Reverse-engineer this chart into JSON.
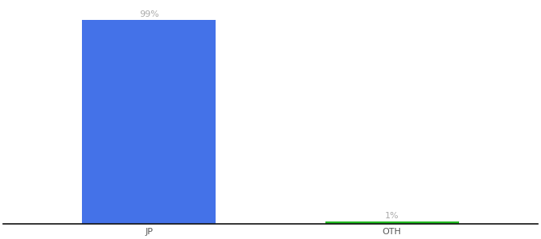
{
  "categories": [
    "JP",
    "OTH"
  ],
  "values": [
    99,
    1
  ],
  "bar_colors": [
    "#4472e8",
    "#22bb22"
  ],
  "value_labels": [
    "99%",
    "1%"
  ],
  "label_color": "#aaaaaa",
  "background_color": "#ffffff",
  "ylim": [
    0,
    107
  ],
  "bar_width": 0.55,
  "label_fontsize": 8,
  "tick_fontsize": 8,
  "axline_color": "#111111",
  "tick_color": "#555555"
}
